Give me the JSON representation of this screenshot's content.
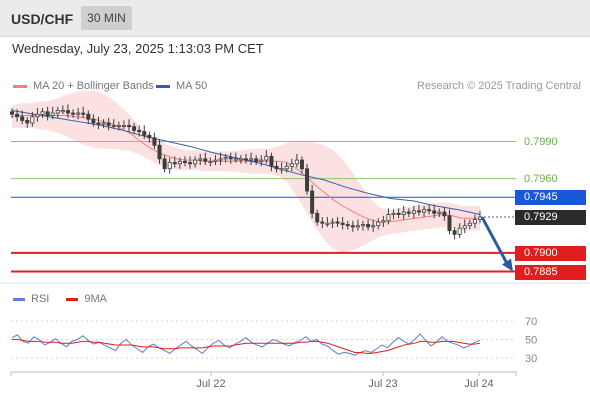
{
  "header": {
    "symbol": "USD/CHF",
    "timeframe": "30 MIN"
  },
  "datetime": "Wednesday, July 23, 2025 1:13:03 PM CET",
  "legend": {
    "bollinger": "MA 20 + Bollinger Bands",
    "ma50": "MA 50"
  },
  "credit": "Research © 2025 Trading Central",
  "rsi_legend": {
    "rsi": "RSI",
    "ma9": "9MA"
  },
  "colors": {
    "bollinger": "#f08080",
    "ma50": "#3a5ba8",
    "green_level": "#8dc76b",
    "pivot_blue": "#1b58d9",
    "red_level": "#e01e1e",
    "candle": "#3d3d3d",
    "rsi": "#5b7fd6",
    "rsi_ma": "#e01e1e",
    "arrow": "#2c5aa0"
  },
  "chart_data": [
    {
      "type": "candlestick",
      "title": "USD/CHF 30 MIN",
      "ylim": [
        0.7872,
        0.8
      ],
      "xticks": [
        "Jul 22",
        "Jul 23",
        "Jul 24"
      ],
      "levels": [
        {
          "value": 0.799,
          "label": "0.7990",
          "kind": "resistance"
        },
        {
          "value": 0.796,
          "label": "0.7960",
          "kind": "resistance"
        },
        {
          "value": 0.7945,
          "label": "0.7945",
          "kind": "pivot"
        },
        {
          "value": 0.79,
          "label": "0.7900",
          "kind": "support"
        },
        {
          "value": 0.7885,
          "label": "0.7885",
          "kind": "support"
        }
      ],
      "last_price": {
        "value": 0.7929,
        "label": "0.7929"
      },
      "forecast_arrow": {
        "from": 0.7929,
        "to": 0.7885
      },
      "close_series": [
        0.8012,
        0.801,
        0.8007,
        0.8005,
        0.801,
        0.8012,
        0.8014,
        0.8011,
        0.8013,
        0.8015,
        0.8015,
        0.8013,
        0.8012,
        0.8013,
        0.8012,
        0.8008,
        0.8005,
        0.8004,
        0.8005,
        0.8003,
        0.8003,
        0.8003,
        0.8003,
        0.8002,
        0.7999,
        0.7998,
        0.7995,
        0.7993,
        0.7987,
        0.7976,
        0.7968,
        0.7973,
        0.7972,
        0.7974,
        0.7973,
        0.7972,
        0.7975,
        0.7976,
        0.7974,
        0.7974,
        0.7975,
        0.7976,
        0.7977,
        0.7976,
        0.7976,
        0.7976,
        0.7975,
        0.7976,
        0.7974,
        0.7975,
        0.7978,
        0.797,
        0.7968,
        0.7968,
        0.797,
        0.7972,
        0.7975,
        0.7968,
        0.795,
        0.7932,
        0.7925,
        0.7924,
        0.7924,
        0.7925,
        0.7924,
        0.7923,
        0.7922,
        0.7921,
        0.7922,
        0.7923,
        0.7921,
        0.7922,
        0.7925,
        0.7926,
        0.7931,
        0.7932,
        0.7931,
        0.7933,
        0.7932,
        0.7934,
        0.7933,
        0.7935,
        0.7934,
        0.7932,
        0.7933,
        0.793,
        0.7918,
        0.7915,
        0.792,
        0.7922,
        0.7924,
        0.7927,
        0.7929
      ],
      "ma20_series": [
        0.801,
        0.8011,
        0.8011,
        0.8011,
        0.8011,
        0.8011,
        0.8011,
        0.801,
        0.8009,
        0.8008,
        0.8006,
        0.8004,
        0.8,
        0.7996,
        0.799,
        0.7985,
        0.7981,
        0.7978,
        0.7976,
        0.7975,
        0.7975,
        0.7974,
        0.7974,
        0.7974,
        0.7974,
        0.7974,
        0.7974,
        0.7974,
        0.7974,
        0.7974,
        0.7973,
        0.7968,
        0.7962,
        0.7955,
        0.7949,
        0.7943,
        0.7938,
        0.7934,
        0.793,
        0.7927,
        0.7925,
        0.7925,
        0.7926,
        0.7927,
        0.7928,
        0.7929,
        0.793,
        0.7931,
        0.793,
        0.7928,
        0.7928,
        0.7928
      ],
      "ma50_series": [
        0.8015,
        0.8012,
        0.8009,
        0.8006,
        0.8003,
        0.7999,
        0.7994,
        0.799,
        0.7986,
        0.7981,
        0.7977,
        0.7973,
        0.7968,
        0.7963,
        0.7959,
        0.7953,
        0.7948,
        0.7944,
        0.7942,
        0.7938,
        0.7935,
        0.7931
      ]
    },
    {
      "type": "line",
      "title": "RSI",
      "ylim": [
        20,
        80
      ],
      "yticks": [
        70,
        50,
        30
      ],
      "series": [
        {
          "name": "RSI",
          "values": [
            52,
            55,
            48,
            46,
            53,
            50,
            44,
            47,
            51,
            46,
            42,
            48,
            50,
            54,
            49,
            45,
            47,
            44,
            41,
            38,
            46,
            50,
            44,
            40,
            36,
            42,
            45,
            41,
            38,
            35,
            40,
            44,
            48,
            43,
            39,
            35,
            41,
            46,
            49,
            44,
            41,
            45,
            48,
            52,
            47,
            44,
            42,
            46,
            50,
            48,
            45,
            43,
            47,
            49,
            53,
            48,
            50,
            45,
            43,
            38,
            34,
            36,
            35,
            33,
            36,
            38,
            36,
            40,
            44,
            41,
            47,
            52,
            48,
            45,
            50,
            56,
            49,
            43,
            47,
            53,
            48,
            46,
            44,
            41,
            43,
            47,
            49
          ]
        },
        {
          "name": "9MA",
          "values": [
            50,
            50,
            49,
            48,
            48,
            48,
            47,
            47,
            47,
            46,
            46,
            46,
            47,
            48,
            48,
            47,
            47,
            46,
            45,
            44,
            44,
            44,
            44,
            43,
            42,
            42,
            42,
            41,
            40,
            40,
            40,
            41,
            41,
            41,
            41,
            41,
            42,
            43,
            43,
            43,
            43,
            44,
            45,
            46,
            46,
            46,
            46,
            46,
            46,
            46,
            46,
            46,
            46,
            47,
            47,
            48,
            48,
            47,
            46,
            44,
            42,
            40,
            38,
            36,
            36,
            35,
            35,
            36,
            37,
            38,
            40,
            42,
            44,
            45,
            46,
            48,
            48,
            47,
            47,
            48,
            48,
            48,
            47,
            46,
            45,
            45,
            46
          ]
        }
      ]
    }
  ]
}
